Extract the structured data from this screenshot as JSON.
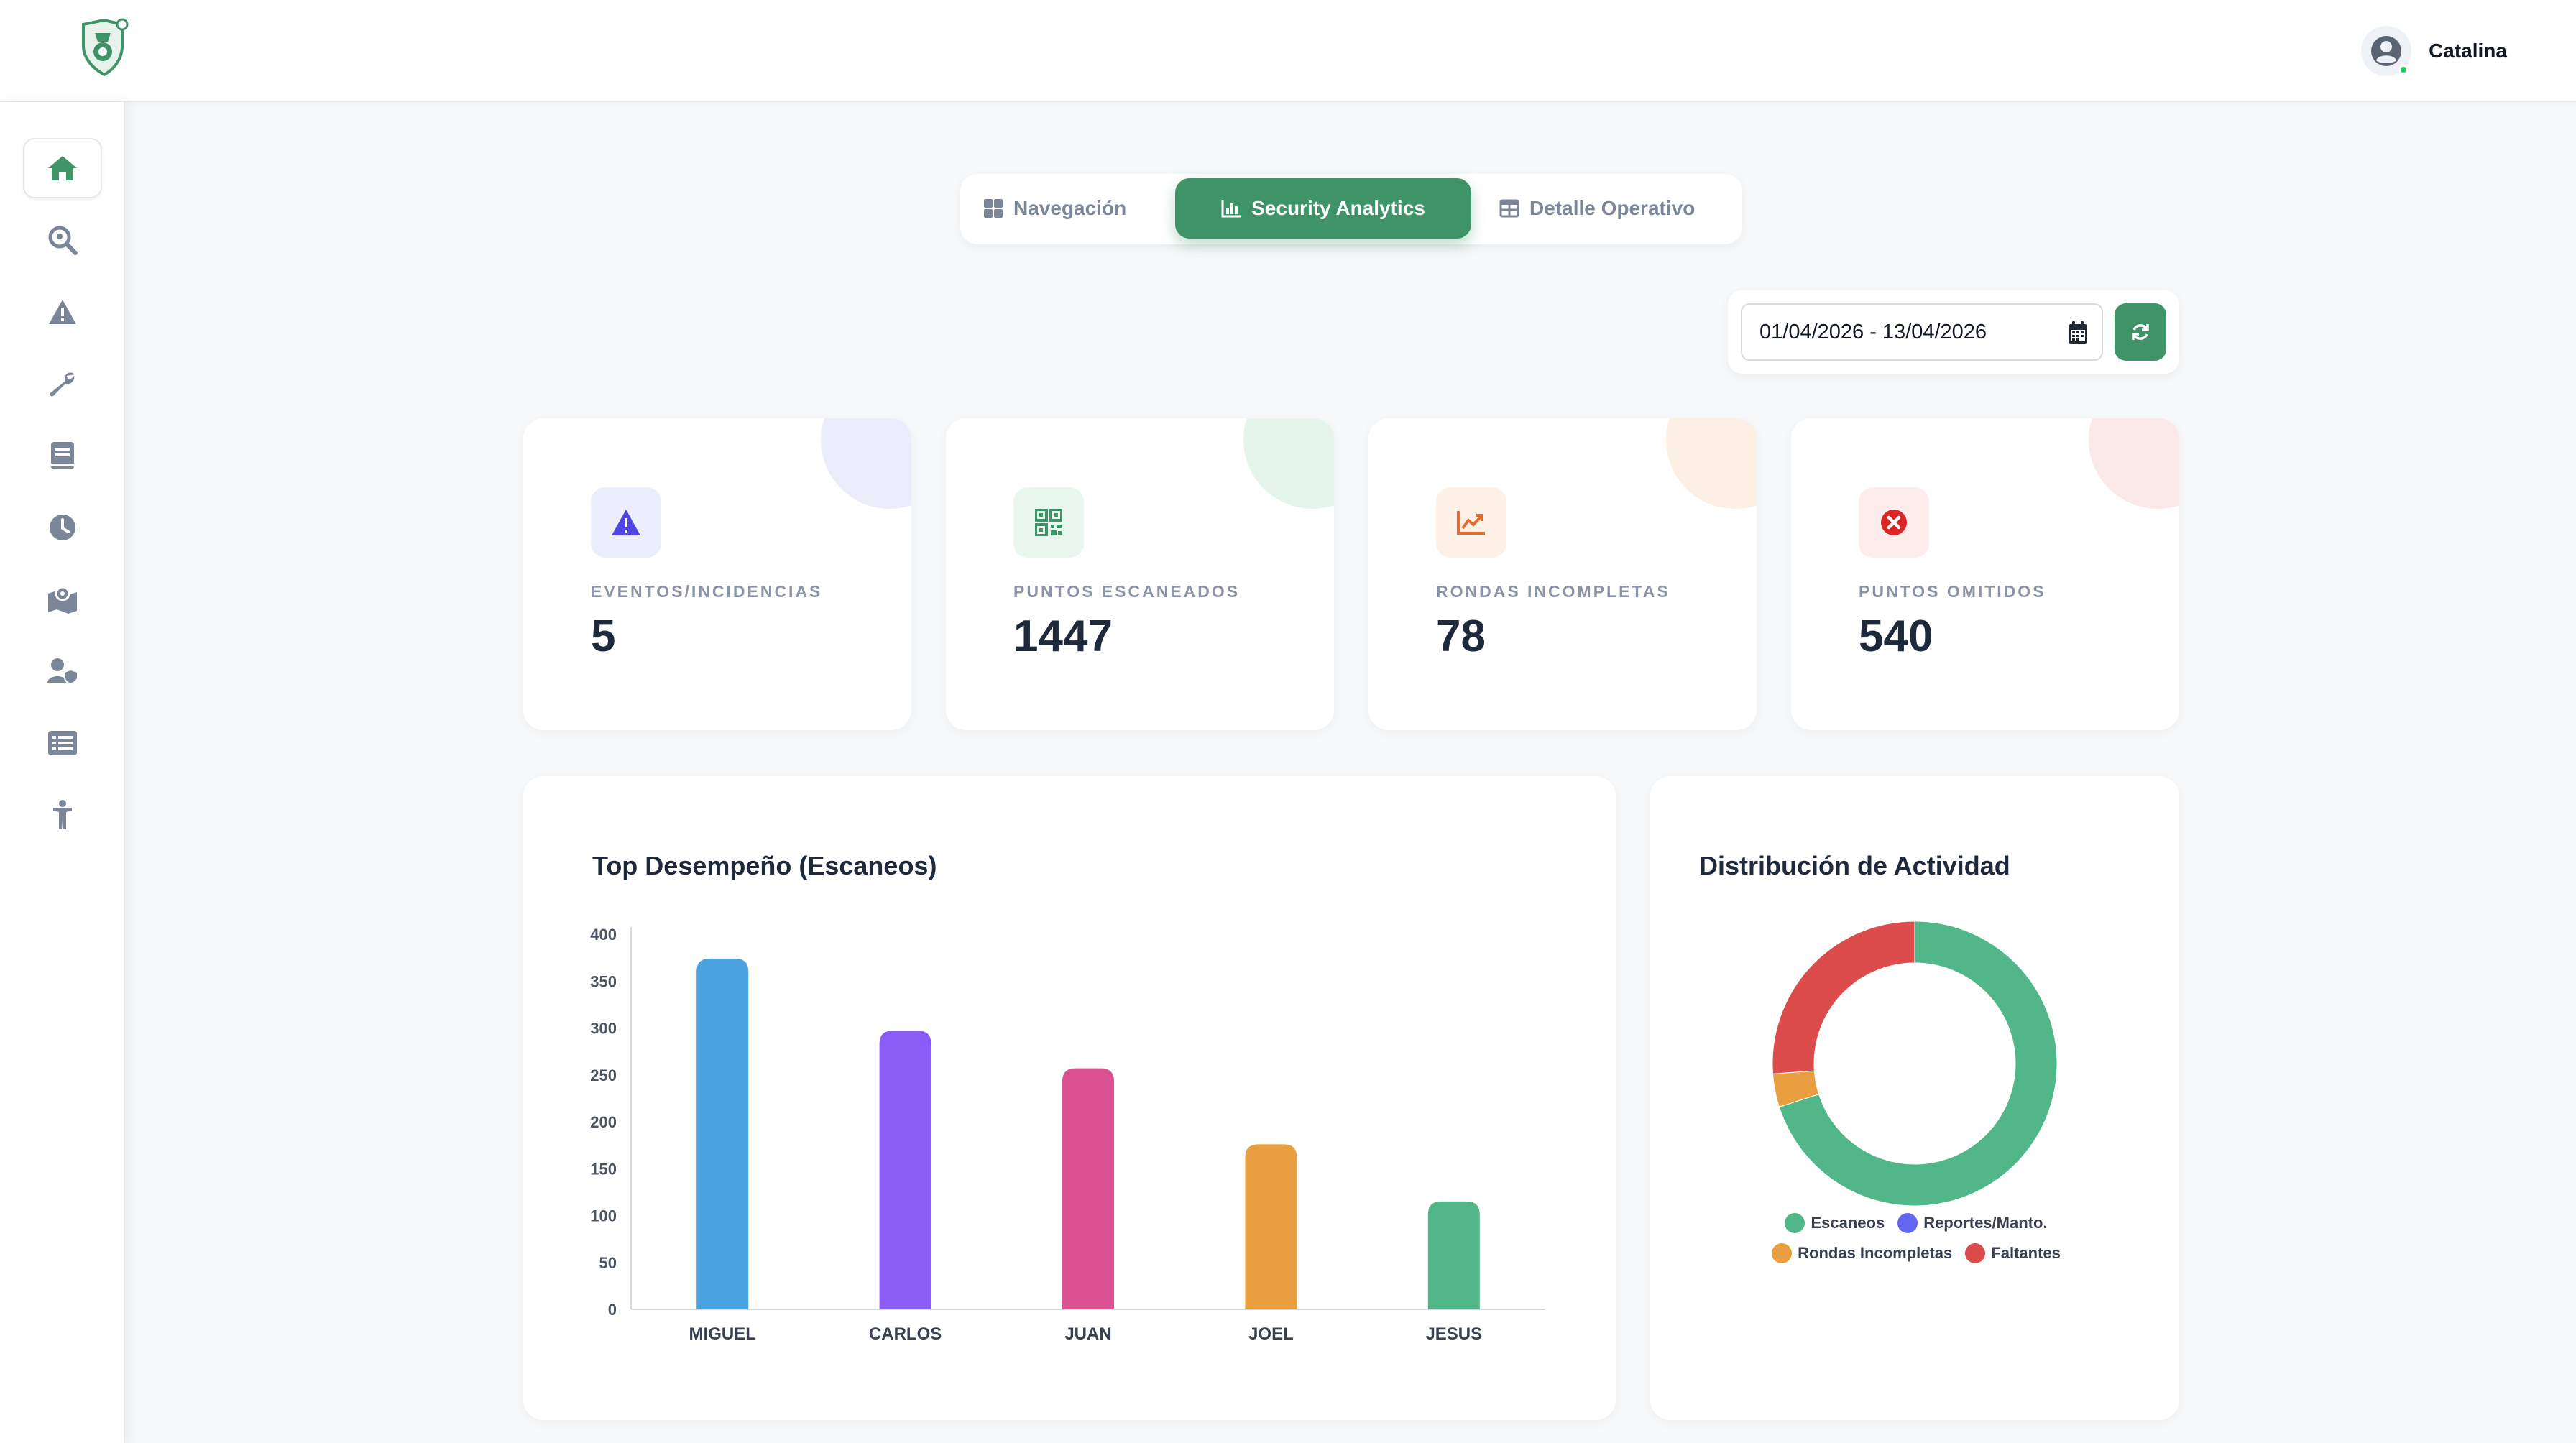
{
  "header": {
    "user_name": "Catalina"
  },
  "sidebar": {
    "items": [
      {
        "icon": "home-icon",
        "active": true
      },
      {
        "icon": "search-location-icon",
        "active": false
      },
      {
        "icon": "warning-icon",
        "active": false
      },
      {
        "icon": "wrench-icon",
        "active": false
      },
      {
        "icon": "book-icon",
        "active": false
      },
      {
        "icon": "clock-icon",
        "active": false
      },
      {
        "icon": "map-location-icon",
        "active": false
      },
      {
        "icon": "user-shield-icon",
        "active": false
      },
      {
        "icon": "list-icon",
        "active": false
      },
      {
        "icon": "person-icon",
        "active": false
      }
    ]
  },
  "tabs": [
    {
      "label": "Navegación",
      "icon": "grid-icon",
      "active": false
    },
    {
      "label": "Security Analytics",
      "icon": "bar-chart-icon",
      "active": true
    },
    {
      "label": "Detalle Operativo",
      "icon": "table-icon",
      "active": false
    }
  ],
  "filter": {
    "date_range": "01/04/2026 - 13/04/2026"
  },
  "stats": [
    {
      "label": "EVENTOS/INCIDENCIAS",
      "value": "5",
      "icon": "warning-icon",
      "color": "#4f46e5"
    },
    {
      "label": "PUNTOS ESCANEADOS",
      "value": "1447",
      "icon": "qrcode-icon",
      "color": "#3e9467"
    },
    {
      "label": "RONDAS INCOMPLETAS",
      "value": "78",
      "icon": "trend-chart-icon",
      "color": "#e06d2f"
    },
    {
      "label": "PUNTOS OMITIDOS",
      "value": "540",
      "icon": "x-circle-icon",
      "color": "#dc2626"
    }
  ],
  "colors": {
    "brand": "#3e9467",
    "background": "#f6f8fa"
  },
  "chart_data": [
    {
      "type": "bar",
      "title": "Top Desempeño (Escaneos)",
      "categories": [
        "MIGUEL",
        "CARLOS",
        "JUAN",
        "JOEL",
        "JESUS"
      ],
      "values": [
        374,
        297,
        257,
        176,
        115
      ],
      "colors": [
        "#4aa3df",
        "#8b5cf6",
        "#dc5191",
        "#e99f3f",
        "#52b788"
      ],
      "yticks": [
        "0",
        "50",
        "100",
        "150",
        "200",
        "250",
        "300",
        "350",
        "400"
      ],
      "ylim": [
        0,
        400
      ],
      "grid": false
    },
    {
      "type": "pie",
      "title": "Distribución de Actividad",
      "labels": [
        "Escaneos",
        "Reportes/Manto.",
        "Rondas Incompletas",
        "Faltantes"
      ],
      "values": [
        1447,
        0,
        78,
        540
      ],
      "colors": [
        "#52b788",
        "#6366f1",
        "#e99f3f",
        "#dc4c4c"
      ],
      "legend": "bottom"
    }
  ]
}
